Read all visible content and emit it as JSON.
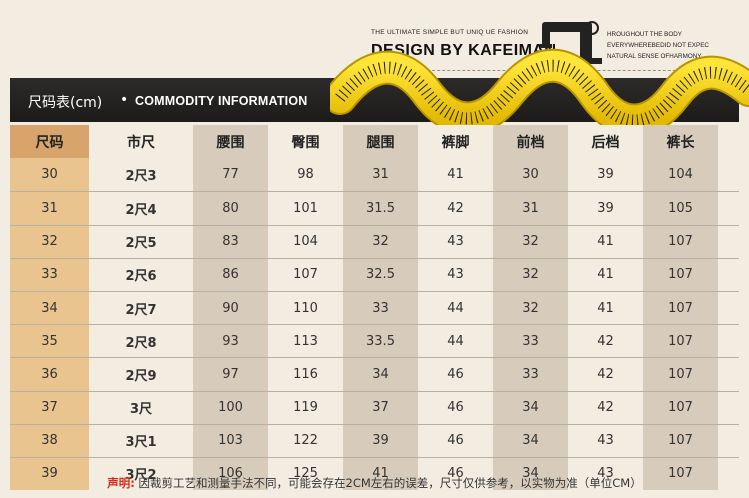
{
  "header": {
    "tagline_left": "THE ULTIMATE SIMPLE BUT UNIQ UE FASHION",
    "brand": "DESIGN BY KAFEIMAN",
    "tagline_right_lines": [
      "HROUGHOUT THE BODY",
      "EVERYWHEREBEDID NOT EXPEC",
      "NATURAL SENSE OFHARMONY,"
    ]
  },
  "title_bar": {
    "cn": "尺码表(cm)",
    "dot": "•",
    "en": "COMMODITY INFORMATION"
  },
  "table": {
    "columns": [
      "尺码",
      "市尺",
      "腰围",
      "臀围",
      "腿围",
      "裤脚",
      "前档",
      "后档",
      "裤长"
    ],
    "rows": [
      [
        "30",
        "2尺3",
        "77",
        "98",
        "31",
        "41",
        "30",
        "39",
        "104"
      ],
      [
        "31",
        "2尺4",
        "80",
        "101",
        "31.5",
        "42",
        "31",
        "39",
        "105"
      ],
      [
        "32",
        "2尺5",
        "83",
        "104",
        "32",
        "43",
        "32",
        "41",
        "107"
      ],
      [
        "33",
        "2尺6",
        "86",
        "107",
        "32.5",
        "43",
        "32",
        "41",
        "107"
      ],
      [
        "34",
        "2尺7",
        "90",
        "110",
        "33",
        "44",
        "32",
        "41",
        "107"
      ],
      [
        "35",
        "2尺8",
        "93",
        "113",
        "33.5",
        "44",
        "33",
        "42",
        "107"
      ],
      [
        "36",
        "2尺9",
        "97",
        "116",
        "34",
        "46",
        "33",
        "42",
        "107"
      ],
      [
        "37",
        "3尺",
        "100",
        "119",
        "37",
        "46",
        "34",
        "42",
        "107"
      ],
      [
        "38",
        "3尺1",
        "103",
        "122",
        "39",
        "46",
        "34",
        "43",
        "107"
      ],
      [
        "39",
        "3尺2",
        "106",
        "125",
        "41",
        "46",
        "34",
        "43",
        "107"
      ]
    ]
  },
  "footer": {
    "label": "声明:",
    "text": "因裁剪工艺和测量手法不同，可能会存在2CM左右的误差，尺寸仅供参考，以实物为准（单位CM）"
  },
  "colors": {
    "size_col": "#eac48f",
    "header_size_col": "#d8a46c",
    "shaded_col": "#d7ccbc",
    "title_bar": "#1c1b1a",
    "tape": "#f4d400",
    "note_label": "#d62b1e"
  },
  "icons": {
    "machine": "sewing-machine-icon",
    "tape": "measuring-tape-graphic"
  }
}
